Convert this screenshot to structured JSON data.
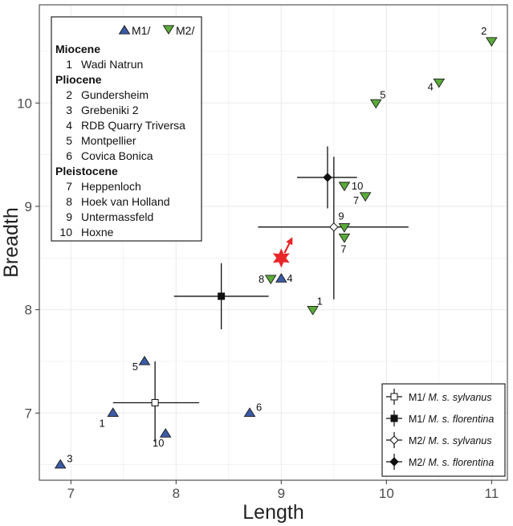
{
  "chart_data": {
    "type": "scatter",
    "xlabel": "Length",
    "ylabel": "Breadth",
    "xlim": [
      6.7,
      11.15
    ],
    "ylim": [
      6.35,
      10.95
    ],
    "x_ticks": [
      7,
      8,
      9,
      10,
      11
    ],
    "y_ticks": [
      7,
      8,
      9,
      10
    ],
    "grid": true,
    "series": [
      {
        "name": "M1/",
        "marker": "triangle-up",
        "color": "#3b5ba5",
        "points": [
          {
            "x": 6.9,
            "y": 6.5,
            "label": "3"
          },
          {
            "x": 7.4,
            "y": 7.0,
            "label": "1"
          },
          {
            "x": 7.7,
            "y": 7.5,
            "label": "5"
          },
          {
            "x": 7.9,
            "y": 6.8,
            "label": "10"
          },
          {
            "x": 8.7,
            "y": 7.0,
            "label": "6"
          },
          {
            "x": 9.0,
            "y": 8.3,
            "label": "4"
          }
        ]
      },
      {
        "name": "M2/",
        "marker": "triangle-down",
        "color": "#5aab3a",
        "points": [
          {
            "x": 11.0,
            "y": 10.6,
            "label": "2"
          },
          {
            "x": 10.5,
            "y": 10.2,
            "label": "4"
          },
          {
            "x": 9.9,
            "y": 10.0,
            "label": "5"
          },
          {
            "x": 9.6,
            "y": 9.2,
            "label": "10"
          },
          {
            "x": 9.8,
            "y": 9.1,
            "label": "7"
          },
          {
            "x": 9.6,
            "y": 8.8,
            "label": "9"
          },
          {
            "x": 9.6,
            "y": 8.7,
            "label": "7"
          },
          {
            "x": 8.9,
            "y": 8.3,
            "label": "8"
          },
          {
            "x": 9.3,
            "y": 8.0,
            "label": "1"
          }
        ]
      }
    ],
    "means": [
      {
        "name": "M1/ M. s. sylvanus",
        "marker": "square-open",
        "x": 7.8,
        "y": 7.1,
        "x_err": [
          7.4,
          8.22
        ],
        "y_err": [
          6.72,
          7.5
        ]
      },
      {
        "name": "M1/ M. s. florentina",
        "marker": "square-filled",
        "x": 8.43,
        "y": 8.13,
        "x_err": [
          7.98,
          8.88
        ],
        "y_err": [
          7.81,
          8.45
        ]
      },
      {
        "name": "M2/ M. s. sylvanus",
        "marker": "diamond-open",
        "x": 9.5,
        "y": 8.8,
        "x_err": [
          8.78,
          10.21
        ],
        "y_err": [
          8.1,
          9.48
        ]
      },
      {
        "name": "M2/ M. s. florentina",
        "marker": "diamond-filled",
        "x": 9.44,
        "y": 9.28,
        "x_err": [
          9.15,
          9.72
        ],
        "y_err": [
          8.98,
          9.58
        ]
      }
    ],
    "specimen_marker": {
      "x": 9.0,
      "y": 8.5,
      "color": "#e8262a"
    },
    "site_legend": {
      "series_labels": [
        "M1/",
        "M2/"
      ],
      "groups": [
        {
          "heading": "Miocene",
          "items": [
            {
              "num": "1",
              "name": "Wadi Natrun"
            }
          ]
        },
        {
          "heading": "Pliocene",
          "items": [
            {
              "num": "2",
              "name": "Gundersheim"
            },
            {
              "num": "3",
              "name": "Grebeniki 2"
            },
            {
              "num": "4",
              "name": "RDB Quarry Triversa"
            },
            {
              "num": "5",
              "name": "Montpellier"
            },
            {
              "num": "6",
              "name": "Covica Bonica"
            }
          ]
        },
        {
          "heading": "Pleistocene",
          "items": [
            {
              "num": "7",
              "name": "Heppenloch"
            },
            {
              "num": "8",
              "name": "Hoek van Holland"
            },
            {
              "num": "9",
              "name": "Untermassfeld"
            },
            {
              "num": "10",
              "name": "Hoxne"
            }
          ]
        }
      ]
    },
    "mean_legend": [
      {
        "prefix": "M1/ ",
        "taxon": "M. s. sylvanus",
        "marker": "square-open"
      },
      {
        "prefix": "M1/ ",
        "taxon": "M. s. florentina",
        "marker": "square-filled"
      },
      {
        "prefix": "M2/ ",
        "taxon": "M. s. sylvanus",
        "marker": "diamond-open"
      },
      {
        "prefix": "M2/ ",
        "taxon": "M. s. florentina",
        "marker": "diamond-filled"
      }
    ]
  }
}
